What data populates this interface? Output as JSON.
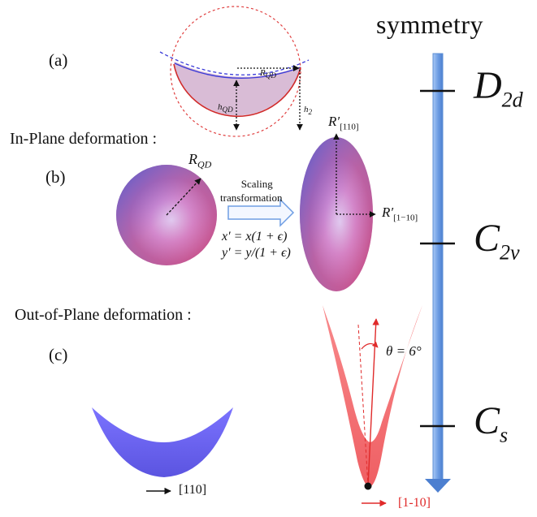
{
  "title": "symmetry",
  "symmetry_levels": [
    {
      "main": "D",
      "sub": "2d"
    },
    {
      "main": "C",
      "sub": "2v"
    },
    {
      "main": "C",
      "sub": "s"
    }
  ],
  "panels": {
    "a": {
      "label": "(a)",
      "r_qd": "R",
      "r_qd_sub": "QD",
      "h_qd": "h",
      "h_qd_sub": "QD",
      "h2": "h",
      "h2_sub": "2"
    },
    "b": {
      "label": "(b)",
      "heading": "In-Plane deformation :",
      "r_qd": "R",
      "r_qd_sub": "QD",
      "transform_label_1": "Scaling",
      "transform_label_2": "transformation",
      "eq_x": "x′ = x(1 + ϵ)",
      "eq_y": "y′ = y/(1 + ϵ)",
      "r_110": "R′",
      "r_110_sub": "[110]",
      "r_1m10": "R′",
      "r_1m10_sub": "[1−10]"
    },
    "c": {
      "label": "(c)",
      "heading": "Out-of-Plane deformation :",
      "angle": "θ = 6°",
      "dir_blue": "[110]",
      "dir_red": "[1-10]"
    }
  },
  "colors": {
    "blue_shape": "#6a62f0",
    "red_shape": "#f26a6e",
    "arrow_blue": "#6f9ee4",
    "red_accent": "#e02a2a"
  }
}
